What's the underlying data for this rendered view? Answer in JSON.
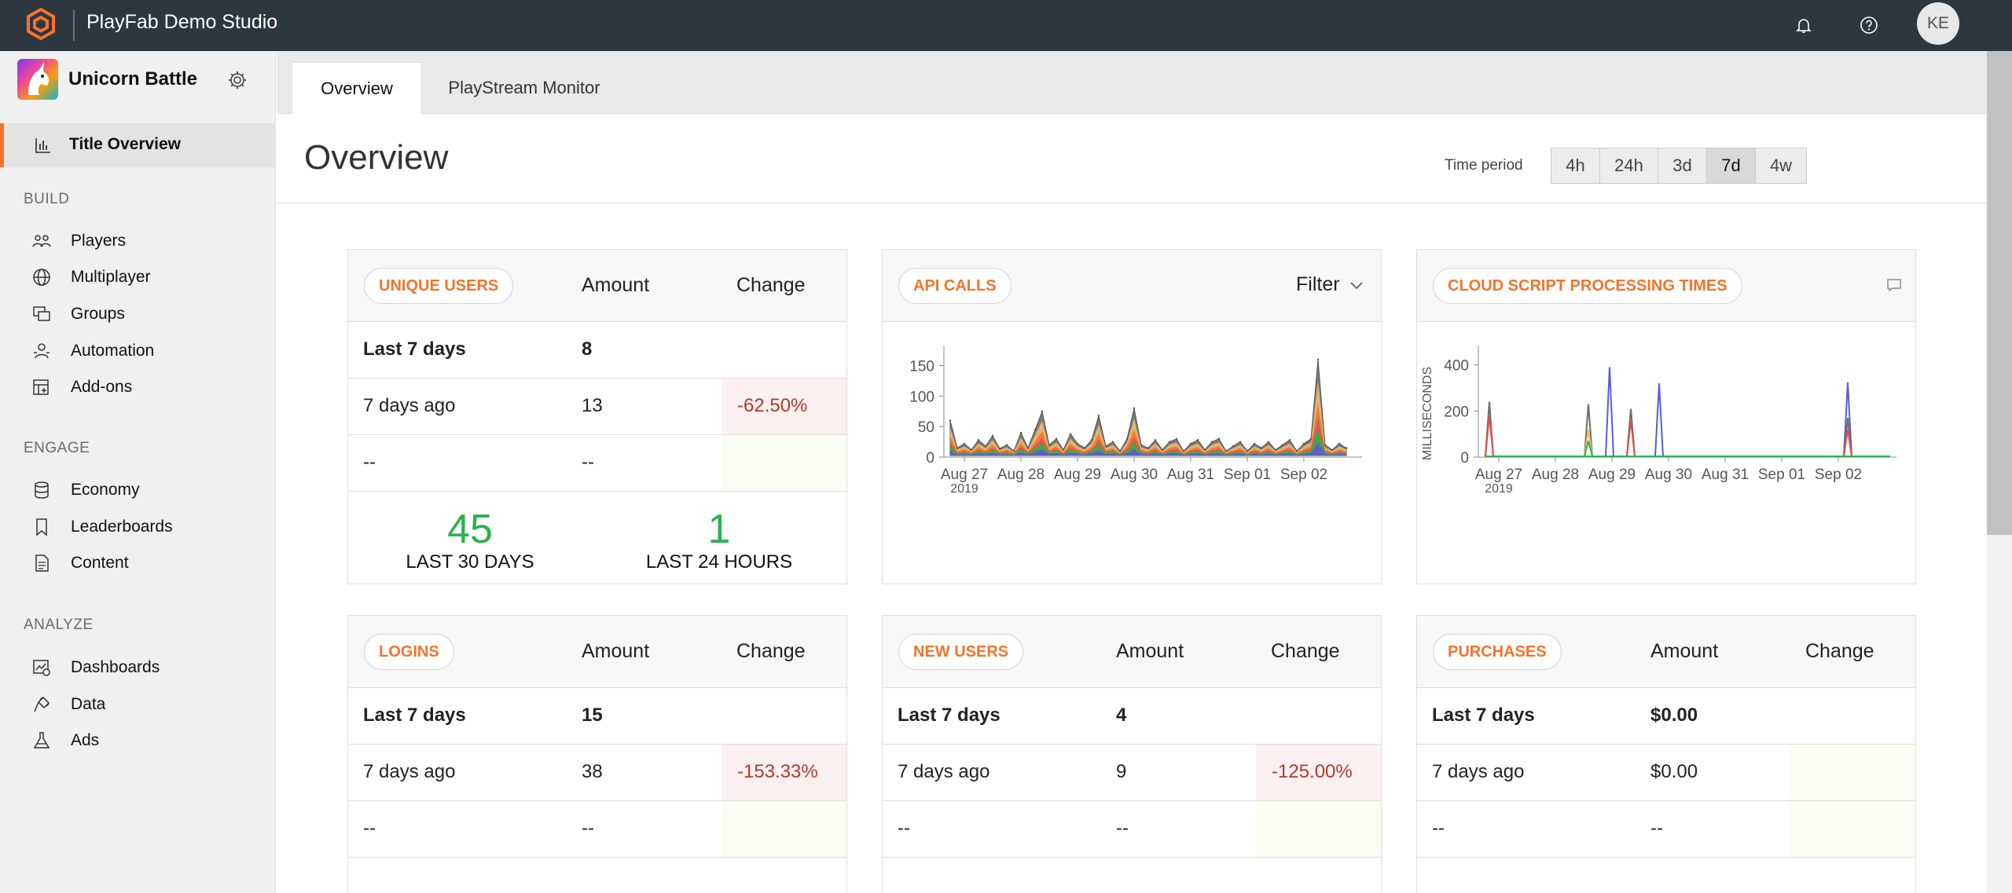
{
  "app": {
    "studio_name": "PlayFab Demo Studio",
    "avatar_initials": "KE",
    "accent_color": "#f4732b"
  },
  "sidebar": {
    "title_name": "Unicorn Battle",
    "active_item": "Title Overview",
    "sections": [
      {
        "label": "BUILD",
        "items": [
          "Players",
          "Multiplayer",
          "Groups",
          "Automation",
          "Add-ons"
        ]
      },
      {
        "label": "ENGAGE",
        "items": [
          "Economy",
          "Leaderboards",
          "Content"
        ]
      },
      {
        "label": "ANALYZE",
        "items": [
          "Dashboards",
          "Data",
          "Ads"
        ]
      }
    ]
  },
  "tabs": [
    "Overview",
    "PlayStream Monitor"
  ],
  "page": {
    "title": "Overview",
    "time_period_label": "Time period",
    "periods": [
      "4h",
      "24h",
      "3d",
      "7d",
      "4w"
    ],
    "selected_period": "7d"
  },
  "cards": {
    "unique_users": {
      "title": "UNIQUE USERS",
      "col_amount": "Amount",
      "col_change": "Change",
      "rows": [
        {
          "label": "Last 7 days",
          "amount": "8",
          "change": ""
        },
        {
          "label": "7 days ago",
          "amount": "13",
          "change": "-62.50%"
        },
        {
          "label": "--",
          "amount": "--",
          "change": ""
        }
      ],
      "stat_30_value": "45",
      "stat_30_label": "LAST 30 DAYS",
      "stat_24_value": "1",
      "stat_24_label": "LAST 24 HOURS"
    },
    "api_calls": {
      "title": "API CALLS",
      "filter_label": "Filter"
    },
    "cloud_script": {
      "title": "CLOUD SCRIPT PROCESSING TIMES"
    },
    "logins": {
      "title": "LOGINS",
      "col_amount": "Amount",
      "col_change": "Change",
      "rows": [
        {
          "label": "Last 7 days",
          "amount": "15",
          "change": ""
        },
        {
          "label": "7 days ago",
          "amount": "38",
          "change": "-153.33%"
        },
        {
          "label": "--",
          "amount": "--",
          "change": ""
        }
      ]
    },
    "new_users": {
      "title": "NEW USERS",
      "col_amount": "Amount",
      "col_change": "Change",
      "rows": [
        {
          "label": "Last 7 days",
          "amount": "4",
          "change": ""
        },
        {
          "label": "7 days ago",
          "amount": "9",
          "change": "-125.00%"
        },
        {
          "label": "--",
          "amount": "--",
          "change": ""
        }
      ]
    },
    "purchases": {
      "title": "PURCHASES",
      "col_amount": "Amount",
      "col_change": "Change",
      "rows": [
        {
          "label": "Last 7 days",
          "amount": "$0.00",
          "change": ""
        },
        {
          "label": "7 days ago",
          "amount": "$0.00",
          "change": ""
        },
        {
          "label": "--",
          "amount": "--",
          "change": ""
        }
      ]
    }
  },
  "chart_data": [
    {
      "type": "area",
      "title": "API CALLS",
      "x_tick_labels": [
        "Aug 27",
        "Aug 28",
        "Aug 29",
        "Aug 30",
        "Aug 31",
        "Sep 01",
        "Sep 02"
      ],
      "x_year_label": "2019",
      "y_ticks": [
        0,
        50,
        100,
        150
      ],
      "ylim": [
        0,
        170
      ],
      "series_colors": [
        "#6b6b6b",
        "#f2c069",
        "#f4732b",
        "#d9534f",
        "#2bb24c",
        "#5b5bd6"
      ],
      "total_series": [
        {
          "x": "Aug 26 18:00",
          "y": 60
        },
        {
          "x": "Aug 26 21:00",
          "y": 15
        },
        {
          "x": "Aug 27 00:00",
          "y": 22
        },
        {
          "x": "Aug 27 03:00",
          "y": 12
        },
        {
          "x": "Aug 27 06:00",
          "y": 28
        },
        {
          "x": "Aug 27 09:00",
          "y": 18
        },
        {
          "x": "Aug 27 12:00",
          "y": 35
        },
        {
          "x": "Aug 27 15:00",
          "y": 14
        },
        {
          "x": "Aug 27 18:00",
          "y": 20
        },
        {
          "x": "Aug 27 21:00",
          "y": 10
        },
        {
          "x": "Aug 28 00:00",
          "y": 40
        },
        {
          "x": "Aug 28 03:00",
          "y": 15
        },
        {
          "x": "Aug 28 06:00",
          "y": 45
        },
        {
          "x": "Aug 28 09:00",
          "y": 75
        },
        {
          "x": "Aug 28 12:00",
          "y": 20
        },
        {
          "x": "Aug 28 15:00",
          "y": 30
        },
        {
          "x": "Aug 28 18:00",
          "y": 12
        },
        {
          "x": "Aug 28 21:00",
          "y": 38
        },
        {
          "x": "Aug 29 00:00",
          "y": 22
        },
        {
          "x": "Aug 29 03:00",
          "y": 15
        },
        {
          "x": "Aug 29 06:00",
          "y": 28
        },
        {
          "x": "Aug 29 09:00",
          "y": 68
        },
        {
          "x": "Aug 29 12:00",
          "y": 18
        },
        {
          "x": "Aug 29 15:00",
          "y": 25
        },
        {
          "x": "Aug 29 18:00",
          "y": 10
        },
        {
          "x": "Aug 29 21:00",
          "y": 30
        },
        {
          "x": "Aug 30 00:00",
          "y": 80
        },
        {
          "x": "Aug 30 03:00",
          "y": 20
        },
        {
          "x": "Aug 30 06:00",
          "y": 15
        },
        {
          "x": "Aug 30 09:00",
          "y": 28
        },
        {
          "x": "Aug 30 12:00",
          "y": 12
        },
        {
          "x": "Aug 30 15:00",
          "y": 25
        },
        {
          "x": "Aug 30 18:00",
          "y": 30
        },
        {
          "x": "Aug 30 21:00",
          "y": 10
        },
        {
          "x": "Aug 31 00:00",
          "y": 22
        },
        {
          "x": "Aug 31 03:00",
          "y": 28
        },
        {
          "x": "Aug 31 06:00",
          "y": 12
        },
        {
          "x": "Aug 31 09:00",
          "y": 25
        },
        {
          "x": "Aug 31 12:00",
          "y": 30
        },
        {
          "x": "Aug 31 15:00",
          "y": 10
        },
        {
          "x": "Aug 31 18:00",
          "y": 18
        },
        {
          "x": "Aug 31 21:00",
          "y": 25
        },
        {
          "x": "Sep 01 00:00",
          "y": 10
        },
        {
          "x": "Sep 01 03:00",
          "y": 22
        },
        {
          "x": "Sep 01 06:00",
          "y": 15
        },
        {
          "x": "Sep 01 09:00",
          "y": 25
        },
        {
          "x": "Sep 01 12:00",
          "y": 12
        },
        {
          "x": "Sep 01 15:00",
          "y": 20
        },
        {
          "x": "Sep 01 18:00",
          "y": 28
        },
        {
          "x": "Sep 01 21:00",
          "y": 10
        },
        {
          "x": "Sep 02 00:00",
          "y": 22
        },
        {
          "x": "Sep 02 03:00",
          "y": 30
        },
        {
          "x": "Sep 02 06:00",
          "y": 160
        },
        {
          "x": "Sep 02 09:00",
          "y": 20
        },
        {
          "x": "Sep 02 12:00",
          "y": 12
        },
        {
          "x": "Sep 02 15:00",
          "y": 22
        },
        {
          "x": "Sep 02 18:00",
          "y": 15
        }
      ]
    },
    {
      "type": "line",
      "title": "CLOUD SCRIPT PROCESSING TIMES",
      "ylabel": "MILLISECONDS",
      "x_tick_labels": [
        "Aug 27",
        "Aug 28",
        "Aug 29",
        "Aug 30",
        "Aug 31",
        "Sep 01",
        "Sep 02"
      ],
      "x_year_label": "2019",
      "y_ticks": [
        0,
        200,
        400
      ],
      "ylim": [
        0,
        450
      ],
      "spikes": [
        {
          "x": "Aug 26 20:00",
          "series": "gray",
          "color": "#6b6b6b",
          "y": 240
        },
        {
          "x": "Aug 26 20:00",
          "series": "red",
          "color": "#d9534f",
          "y": 180
        },
        {
          "x": "Aug 28 14:00",
          "series": "gray",
          "color": "#6b6b6b",
          "y": 230
        },
        {
          "x": "Aug 28 14:00",
          "series": "yellow",
          "color": "#f2c069",
          "y": 120
        },
        {
          "x": "Aug 28 14:00",
          "series": "green",
          "color": "#2bb24c",
          "y": 70
        },
        {
          "x": "Aug 28 23:00",
          "series": "blue",
          "color": "#5b5bd6",
          "y": 390
        },
        {
          "x": "Aug 29 08:00",
          "series": "gray",
          "color": "#6b6b6b",
          "y": 210
        },
        {
          "x": "Aug 29 08:00",
          "series": "red",
          "color": "#d9534f",
          "y": 160
        },
        {
          "x": "Aug 29 20:00",
          "series": "blue",
          "color": "#5b5bd6",
          "y": 320
        },
        {
          "x": "Sep 02 04:00",
          "series": "blue",
          "color": "#5b5bd6",
          "y": 325
        },
        {
          "x": "Sep 02 04:00",
          "series": "gray",
          "color": "#6b6b6b",
          "y": 170
        },
        {
          "x": "Sep 02 04:00",
          "series": "red",
          "color": "#d9534f",
          "y": 120
        }
      ],
      "baseline_series": {
        "series": "green",
        "color": "#2bb24c",
        "y": 0
      }
    }
  ]
}
